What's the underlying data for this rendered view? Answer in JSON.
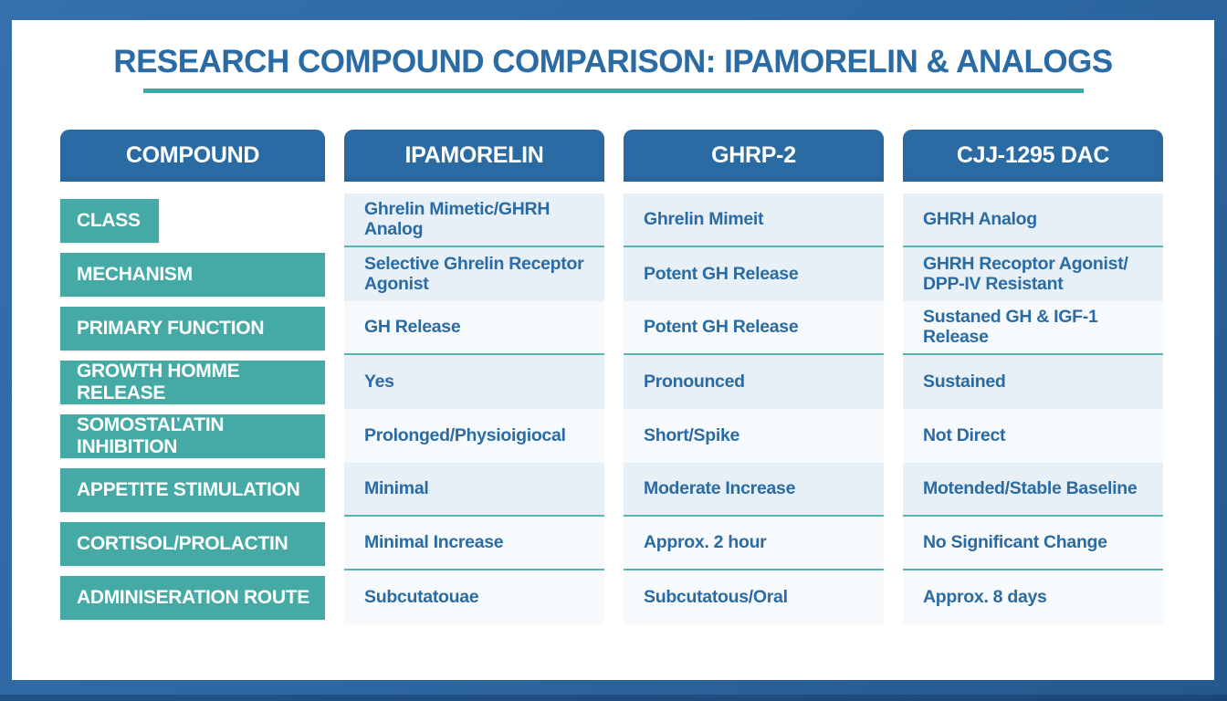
{
  "title": "RESEARCH COMPOUND COMPARISON: IPAMORELIN & ANALOGS",
  "colors": {
    "frame_blue": "#2d67a1",
    "header_blue": "#2b6ba3",
    "label_teal": "#45aaa5",
    "divider_teal": "#56b7b1",
    "underline_teal": "#3fa9a5",
    "cell_pale": "#e7f0f6",
    "cell_light": "#f7fafc",
    "text_blue": "#2b6ba3"
  },
  "chart_data": {
    "type": "table",
    "title": "RESEARCH COMPOUND COMPARISON: IPAMORELIN & ANALOGS",
    "corner_header": "COMPOUND",
    "columns": [
      "IPAMORELIN",
      "GHRP-2",
      "CJJ-1295 DAC"
    ],
    "rows": [
      {
        "label": "CLASS",
        "values": [
          "Ghrelin Mimetic/GHRH Analog",
          "Ghrelin Mimeit",
          "GHRH Analog"
        ]
      },
      {
        "label": "MECHANISM",
        "values": [
          "Selective Ghrelin Receptor Agonist",
          "Potent GH Release",
          "GHRH Recoptor Agonist/ DPP-IV Resistant"
        ]
      },
      {
        "label": "PRIMARY FUNCTION",
        "values": [
          "GH Release",
          "Potent GH Release",
          "Sustaned GH & IGF-1 Release"
        ]
      },
      {
        "label": "GROWTH HOMME RELEASE",
        "values": [
          "Yes",
          "Pronounced",
          "Sustained"
        ]
      },
      {
        "label": "SOMOSTAĽATIN INHIBITION",
        "values": [
          "Prolonged/Physioigiocal",
          "Short/Spike",
          "Not Direct"
        ]
      },
      {
        "label": "APPETITE STIMULATION",
        "values": [
          "Minimal",
          "Moderate Increase",
          "Motended/Stable Baseline"
        ]
      },
      {
        "label": "CORTISOL/PROLACTIN",
        "values": [
          "Minimal Increase",
          "Approx. 2 hour",
          "No Significant Change"
        ]
      },
      {
        "label": "ADMINISERATION ROUTE",
        "values": [
          "Subcutatouae",
          "Subcutatous/Oral",
          "Approx. 8 days"
        ]
      }
    ]
  }
}
